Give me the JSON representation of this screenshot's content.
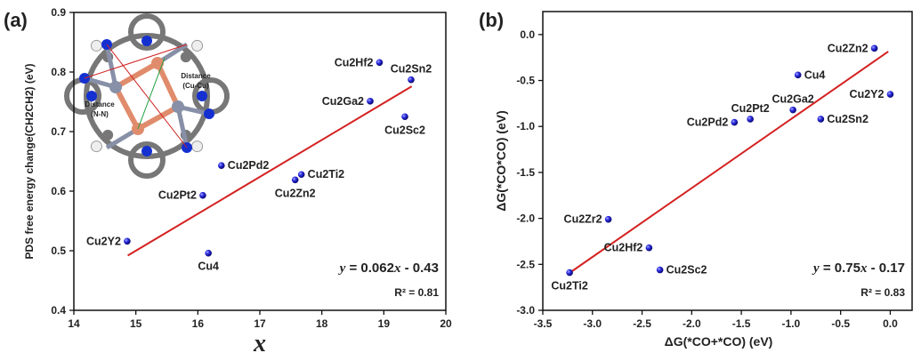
{
  "chart_data": [
    {
      "type": "scatter",
      "panel_label": "(a)",
      "xlabel": "x",
      "ylabel": "PDS free energy change(CH2CH2) (eV)",
      "xlim": [
        14,
        20
      ],
      "ylim": [
        0.4,
        0.9
      ],
      "xticks": [
        14,
        15,
        16,
        17,
        18,
        19,
        20
      ],
      "yticks": [
        0.4,
        0.5,
        0.6,
        0.7,
        0.8,
        0.9
      ],
      "ytick_format": 1,
      "grid": false,
      "point_color": "#1a1acc",
      "fit_color": "#d42020",
      "points": [
        {
          "label": "Cu2Y2",
          "x": 14.86,
          "y": 0.516,
          "pos": "left"
        },
        {
          "label": "Cu4",
          "x": 16.17,
          "y": 0.496,
          "pos": "below"
        },
        {
          "label": "Cu2Pt2",
          "x": 16.08,
          "y": 0.593,
          "pos": "left"
        },
        {
          "label": "Cu2Pd2",
          "x": 16.38,
          "y": 0.643,
          "pos": "right"
        },
        {
          "label": "Cu2Zn2",
          "x": 17.57,
          "y": 0.619,
          "pos": "below"
        },
        {
          "label": "Cu2Ti2",
          "x": 17.67,
          "y": 0.628,
          "pos": "right"
        },
        {
          "label": "Cu2Ga2",
          "x": 18.78,
          "y": 0.751,
          "pos": "left"
        },
        {
          "label": "Cu2Hf2",
          "x": 18.93,
          "y": 0.816,
          "pos": "left"
        },
        {
          "label": "Cu2Sn2",
          "x": 19.44,
          "y": 0.787,
          "pos": "above"
        },
        {
          "label": "Cu2Sc2",
          "x": 19.34,
          "y": 0.725,
          "pos": "below"
        }
      ],
      "fit": {
        "slope": 0.062,
        "intercept": -0.43,
        "x_range": [
          14.87,
          19.45
        ]
      },
      "equation": {
        "y": "y",
        "rest": " = 0.062",
        "x": "x",
        "tail": " - 0.43"
      },
      "r2": "R² = 0.81",
      "inset": {
        "label_cu": [
          "Distance",
          "(Cu-Cu)"
        ],
        "label_nn": [
          "Distance",
          "(N-N)"
        ]
      }
    },
    {
      "type": "scatter",
      "panel_label": "(b)",
      "xlabel": "ΔG(*CO+*CO) (eV)",
      "ylabel": "ΔG(*CO*CO) (eV)",
      "xlim": [
        -3.5,
        0.22
      ],
      "ylim": [
        -3.0,
        0.25
      ],
      "xticks": [
        -3.5,
        -3.0,
        -2.5,
        -2.0,
        -1.5,
        -1.0,
        -0.5,
        0.0
      ],
      "yticks": [
        -3.0,
        -2.5,
        -2.0,
        -1.5,
        -1.0,
        -0.5,
        0.0
      ],
      "grid": false,
      "point_color": "#1a1acc",
      "fit_color": "#d42020",
      "points": [
        {
          "label": "Cu2Zn2",
          "x": -0.16,
          "y": -0.15,
          "pos": "left"
        },
        {
          "label": "Cu4",
          "x": -0.93,
          "y": -0.44,
          "pos": "right"
        },
        {
          "label": "Cu2Y2",
          "x": 0.0,
          "y": -0.65,
          "pos": "left"
        },
        {
          "label": "Cu2Ga2",
          "x": -0.98,
          "y": -0.82,
          "pos": "above"
        },
        {
          "label": "Cu2Sn2",
          "x": -0.7,
          "y": -0.92,
          "pos": "right"
        },
        {
          "label": "Cu2Pt2",
          "x": -1.41,
          "y": -0.92,
          "pos": "above"
        },
        {
          "label": "Cu2Pd2",
          "x": -1.57,
          "y": -0.955,
          "pos": "left"
        },
        {
          "label": "Cu2Zr2",
          "x": -2.84,
          "y": -2.01,
          "pos": "left"
        },
        {
          "label": "Cu2Hf2",
          "x": -2.43,
          "y": -2.32,
          "pos": "left"
        },
        {
          "label": "Cu2Sc2",
          "x": -2.32,
          "y": -2.56,
          "pos": "right"
        },
        {
          "label": "Cu2Ti2",
          "x": -3.23,
          "y": -2.59,
          "pos": "below"
        }
      ],
      "fit": {
        "slope": 0.75,
        "intercept": -0.17,
        "x_range": [
          -3.23,
          -0.02
        ]
      },
      "equation": {
        "y": "y",
        "rest": " = 0.75",
        "x": "x",
        "tail": " - 0.17"
      },
      "r2": "R² = 0.83"
    }
  ]
}
